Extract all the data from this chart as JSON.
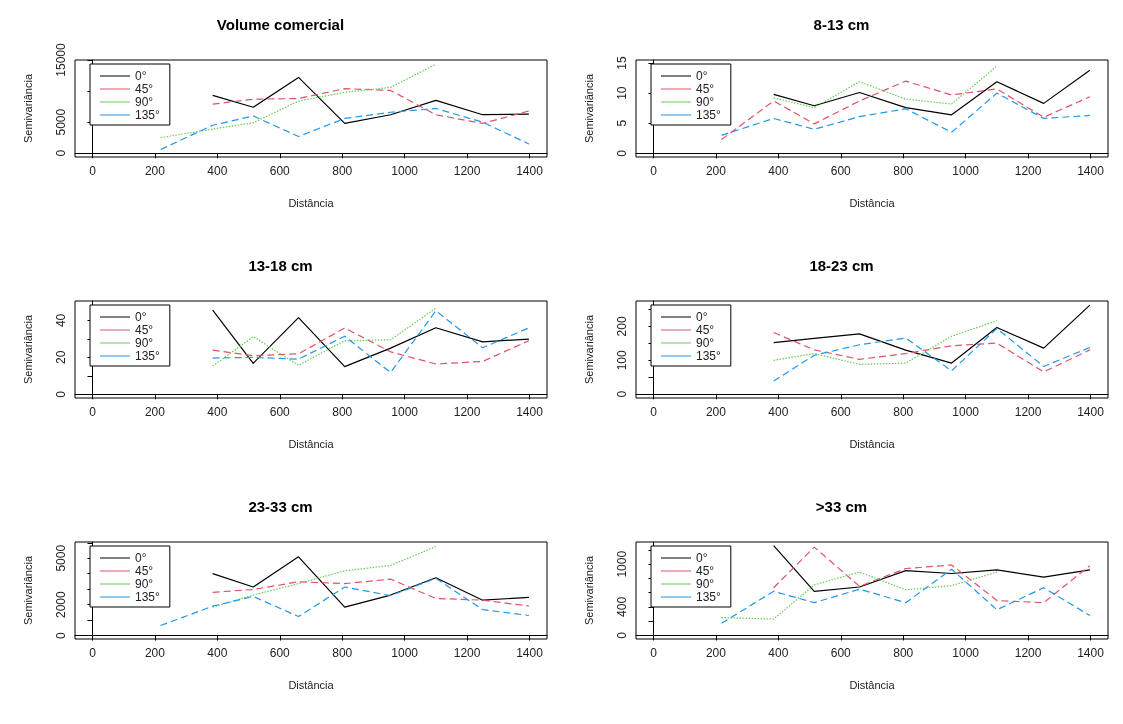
{
  "chart_data": [
    {
      "type": "line",
      "title": "Volume comercial",
      "xlabel": "Distância",
      "ylabel": "Semivariância",
      "legend": "top left",
      "x": [
        218,
        385,
        515,
        660,
        808,
        955,
        1100,
        1250,
        1398
      ],
      "xlim": [
        -56,
        1456
      ],
      "xticks": [
        0,
        200,
        400,
        600,
        800,
        1000,
        1200,
        1400
      ],
      "ylim": [
        -600,
        15000
      ],
      "yticks": [
        0,
        5000,
        {
          "value": 10000,
          "label": null
        },
        15000
      ],
      "series": [
        {
          "name": "0°",
          "color": "#000000",
          "line_style": "solid",
          "values": [
            null,
            9300,
            7400,
            12200,
            4800,
            6200,
            8500,
            6200,
            6300
          ]
        },
        {
          "name": "45°",
          "color": "#df536b",
          "line_style": "dashed",
          "values": [
            null,
            7900,
            8700,
            8800,
            10400,
            10100,
            6200,
            4800,
            6800
          ]
        },
        {
          "name": "90°",
          "color": "#61d04f",
          "line_style": "dotted",
          "values": [
            2500,
            3900,
            4900,
            8400,
            9800,
            10600,
            14300,
            null,
            null
          ]
        },
        {
          "name": "135°",
          "color": "#2297e6",
          "line_style": "dashed",
          "values": [
            600,
            4500,
            6000,
            2700,
            5600,
            6600,
            7200,
            5000,
            1500
          ]
        }
      ]
    },
    {
      "type": "line",
      "title": "8-13 cm",
      "xlabel": "Distância",
      "ylabel": "Semivariância",
      "legend": "top left",
      "x": [
        218,
        385,
        515,
        660,
        808,
        955,
        1100,
        1250,
        1398
      ],
      "xlim": [
        -56,
        1456
      ],
      "xticks": [
        0,
        200,
        400,
        600,
        800,
        1000,
        1200,
        1400
      ],
      "ylim": [
        -0.6,
        15.5
      ],
      "yticks": [
        0,
        5,
        10,
        15
      ],
      "series": [
        {
          "name": "0°",
          "color": "#000000",
          "line_style": "solid",
          "values": [
            null,
            9.8,
            7.9,
            10.1,
            7.6,
            6.4,
            11.9,
            8.3,
            13.8
          ]
        },
        {
          "name": "45°",
          "color": "#df536b",
          "line_style": "dashed",
          "values": [
            2.3,
            8.7,
            4.9,
            8.7,
            12.0,
            9.7,
            10.7,
            6.0,
            9.4
          ]
        },
        {
          "name": "90°",
          "color": "#61d04f",
          "line_style": "dotted",
          "values": [
            null,
            9.2,
            7.6,
            11.9,
            9.0,
            8.2,
            14.5,
            null,
            null
          ]
        },
        {
          "name": "135°",
          "color": "#2297e6",
          "line_style": "dashed",
          "values": [
            3.0,
            5.8,
            4.0,
            6.1,
            7.4,
            3.5,
            10.0,
            5.8,
            6.3
          ]
        }
      ]
    },
    {
      "type": "line",
      "title": "13-18 cm",
      "xlabel": "Distância",
      "ylabel": "Semivariância",
      "legend": "top left",
      "x": [
        385,
        515,
        660,
        808,
        955,
        1100,
        1250,
        1398
      ],
      "xlim": [
        -56,
        1456
      ],
      "xticks": [
        0,
        200,
        400,
        600,
        800,
        1000,
        1200,
        1400
      ],
      "ylim": [
        -2,
        50.5
      ],
      "yticks": [
        0,
        {
          "value": 10,
          "label": null
        },
        20,
        {
          "value": 30,
          "label": null
        },
        40
      ],
      "series": [
        {
          "name": "0°",
          "color": "#000000",
          "line_style": "solid",
          "values": [
            45.6,
            16.8,
            41.5,
            15.0,
            25,
            36,
            28.4,
            29.9
          ]
        },
        {
          "name": "45°",
          "color": "#df536b",
          "line_style": "dashed",
          "values": [
            23.9,
            20.9,
            21.9,
            35.9,
            23,
            16.4,
            17.8,
            29
          ]
        },
        {
          "name": "90°",
          "color": "#61d04f",
          "line_style": "dotted",
          "values": [
            15.3,
            31.2,
            15.7,
            29,
            29.5,
            46.7,
            null,
            null
          ]
        },
        {
          "name": "135°",
          "color": "#2297e6",
          "line_style": "dashed",
          "values": [
            19.6,
            20,
            19,
            31.4,
            11.8,
            45.2,
            25.2,
            36
          ]
        }
      ]
    },
    {
      "type": "line",
      "title": "18-23 cm",
      "xlabel": "Distância",
      "ylabel": "Semivariância",
      "legend": "top left",
      "x": [
        385,
        515,
        660,
        808,
        955,
        1100,
        1250,
        1398
      ],
      "xlim": [
        -56,
        1456
      ],
      "xticks": [
        0,
        200,
        400,
        600,
        800,
        1000,
        1200,
        1400
      ],
      "ylim": [
        -11,
        275
      ],
      "yticks": [
        0,
        {
          "value": 50,
          "label": null
        },
        100,
        {
          "value": 150,
          "label": null
        },
        200,
        {
          "value": 250,
          "label": null
        }
      ],
      "series": [
        {
          "name": "0°",
          "color": "#000000",
          "line_style": "solid",
          "values": [
            152,
            165,
            178,
            130,
            92,
            197,
            136,
            263
          ]
        },
        {
          "name": "45°",
          "color": "#df536b",
          "line_style": "dashed",
          "values": [
            182,
            131,
            103,
            120,
            143,
            151,
            66,
            131
          ]
        },
        {
          "name": "90°",
          "color": "#61d04f",
          "line_style": "dotted",
          "values": [
            100,
            120,
            88,
            92,
            171,
            217,
            null,
            null
          ]
        },
        {
          "name": "135°",
          "color": "#2297e6",
          "line_style": "dashed",
          "values": [
            39,
            115,
            146,
            166,
            69,
            194,
            82,
            138
          ]
        }
      ]
    },
    {
      "type": "line",
      "title": "23-33 cm",
      "xlabel": "Distância",
      "ylabel": "Semivariância",
      "legend": "top left",
      "x": [
        218,
        385,
        515,
        660,
        808,
        955,
        1100,
        1250,
        1398
      ],
      "xlim": [
        -56,
        1456
      ],
      "xticks": [
        0,
        200,
        400,
        600,
        800,
        1000,
        1200,
        1400
      ],
      "ylim": [
        -220,
        6050
      ],
      "yticks": [
        0,
        {
          "value": 1000,
          "label": null
        },
        2000,
        {
          "value": 3000,
          "label": null
        },
        {
          "value": 4000,
          "label": null
        },
        5000,
        {
          "value": 6000,
          "label": null
        }
      ],
      "series": [
        {
          "name": "0°",
          "color": "#000000",
          "line_style": "solid",
          "values": [
            null,
            4010,
            3140,
            5090,
            1840,
            2620,
            3740,
            2290,
            2470
          ]
        },
        {
          "name": "45°",
          "color": "#df536b",
          "line_style": "dashed",
          "values": [
            null,
            2800,
            2980,
            3480,
            3360,
            3650,
            2400,
            2290,
            1910
          ]
        },
        {
          "name": "90°",
          "color": "#61d04f",
          "line_style": "dotted",
          "values": [
            null,
            1840,
            2620,
            3360,
            4190,
            4530,
            5760,
            null,
            null
          ]
        },
        {
          "name": "135°",
          "color": "#2297e6",
          "line_style": "dashed",
          "values": [
            650,
            1900,
            2530,
            1230,
            3140,
            2580,
            3700,
            1680,
            1300
          ]
        }
      ]
    },
    {
      "type": "line",
      "title": ">33 cm",
      "xlabel": "Distância",
      "ylabel": "Semivariância",
      "legend": "top left",
      "x": [
        218,
        385,
        515,
        660,
        808,
        955,
        1100,
        1250,
        1398
      ],
      "xlim": [
        -56,
        1456
      ],
      "xticks": [
        0,
        200,
        400,
        600,
        800,
        1000,
        1200,
        1400
      ],
      "ylim": [
        -50,
        1312
      ],
      "yticks": [
        0,
        {
          "value": 200,
          "label": null
        },
        400,
        {
          "value": 600,
          "label": null
        },
        {
          "value": 800,
          "label": null
        },
        1000,
        {
          "value": 1200,
          "label": null
        }
      ],
      "series": [
        {
          "name": "0°",
          "color": "#000000",
          "line_style": "solid",
          "values": [
            null,
            1260,
            620,
            680,
            910,
            870,
            920,
            820,
            920
          ]
        },
        {
          "name": "45°",
          "color": "#df536b",
          "line_style": "dashed",
          "values": [
            null,
            670,
            1240,
            690,
            940,
            990,
            490,
            460,
            980
          ]
        },
        {
          "name": "90°",
          "color": "#61d04f",
          "line_style": "dotted",
          "values": [
            250,
            230,
            710,
            890,
            640,
            700,
            890,
            null,
            null
          ]
        },
        {
          "name": "135°",
          "color": "#2297e6",
          "line_style": "dashed",
          "values": [
            170,
            620,
            460,
            650,
            460,
            930,
            360,
            670,
            280
          ]
        }
      ]
    }
  ]
}
